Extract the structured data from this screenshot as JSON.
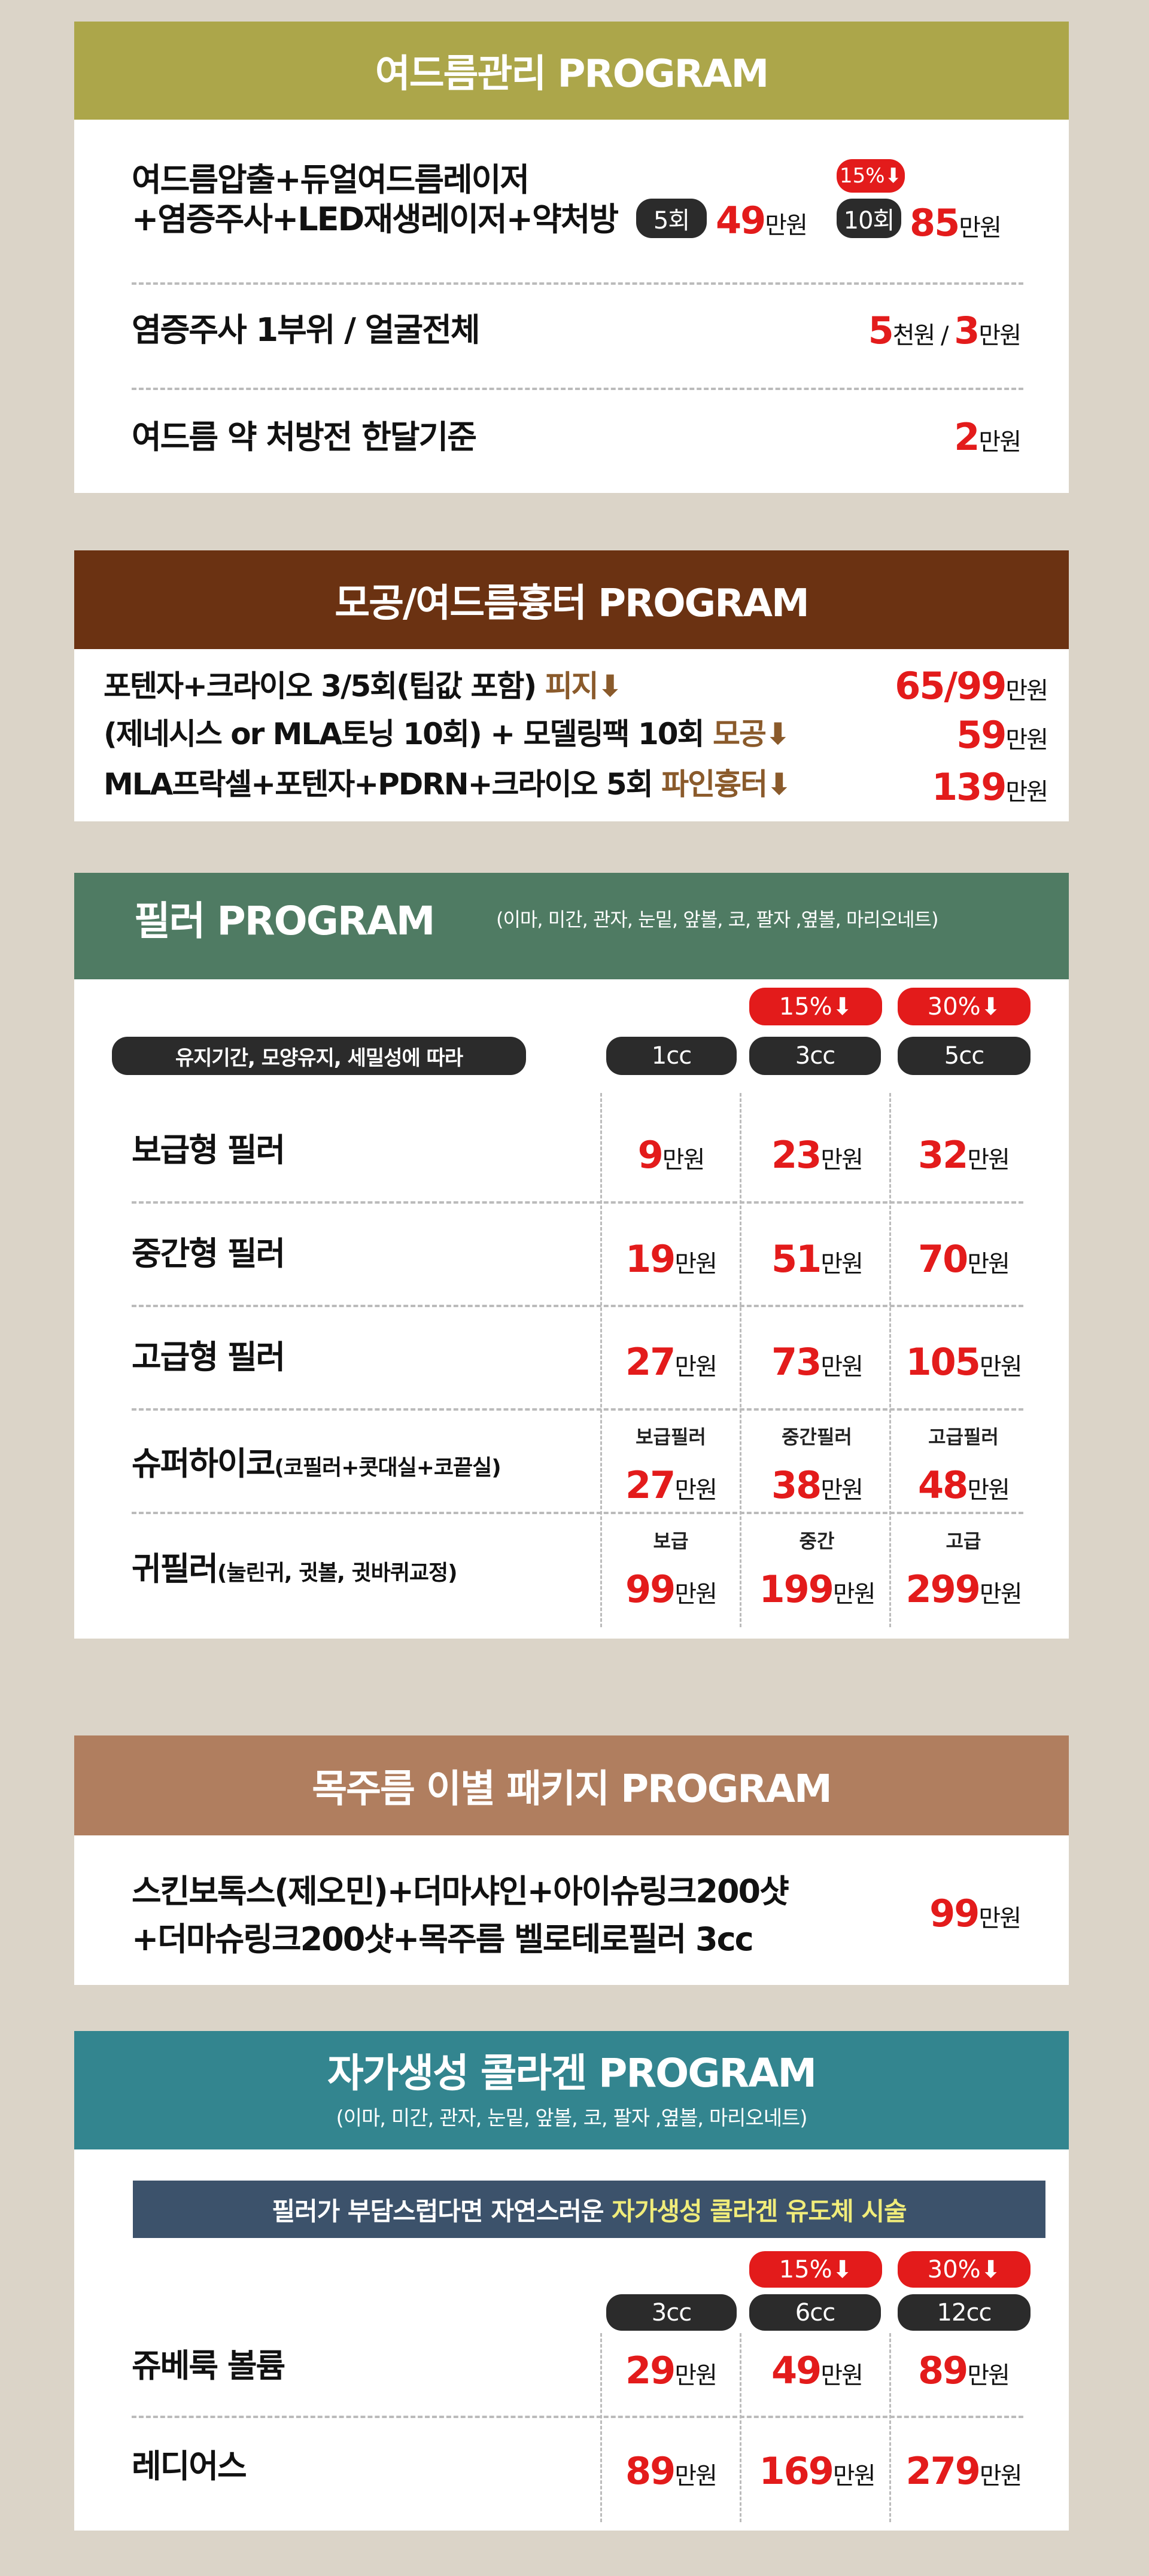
{
  "colors": {
    "acne": "#aca64a",
    "pore": "#6b3212",
    "filler": "#4f7b63",
    "neck": "#b07e5f",
    "collagen": "#33858f",
    "band": "#3c526b",
    "price": "#e31b1b",
    "highlight": "#f0ec7a"
  },
  "unit": "만원",
  "acne": {
    "title": "여드름관리 PROGRAM",
    "row1": {
      "line1": "여드름압출+듀얼여드름레이저",
      "line2": "+염증주사+LED재생레이저+약처방",
      "opt1": {
        "badge": "5회",
        "price": "49"
      },
      "opt2": {
        "discount": "15%⬇",
        "badge": "10회",
        "price": "85"
      }
    },
    "row2": {
      "name": "염증주사 1부위 / 얼굴전체",
      "price1": "5",
      "unit1": "천원",
      "sep": " / ",
      "price2": "3"
    },
    "row3": {
      "name": "여드름 약 처방전 한달기준",
      "price": "2"
    }
  },
  "pore": {
    "title": "모공/여드름흉터 PROGRAM",
    "rows": [
      {
        "name": "포텐자+크라이오 3/5회(팁값 포함)",
        "tag": "피지⬇",
        "price": "65/99"
      },
      {
        "name": "(제네시스 or MLA토닝 10회) + 모델링팩 10회",
        "tag": "모공⬇",
        "price": "59"
      },
      {
        "name": "MLA프락셀+포텐자+PDRN+크라이오 5회",
        "tag": "파인흉터⬇",
        "price": "139"
      }
    ]
  },
  "filler": {
    "title": "필러 PROGRAM",
    "subtitle": "(이마, 미간, 관자, 눈밑, 앞볼, 코, 팔자 ,옆볼, 마리오네트)",
    "criteria": "유지기간, 모양유지, 세밀성에 따라",
    "discounts": [
      "15%⬇",
      "30%⬇"
    ],
    "columns": [
      "1cc",
      "3cc",
      "5cc"
    ],
    "rows": [
      {
        "name": "보급형 필러",
        "sub": "",
        "labels": [
          "",
          "",
          ""
        ],
        "prices": [
          "9",
          "23",
          "32"
        ]
      },
      {
        "name": "중간형 필러",
        "sub": "",
        "labels": [
          "",
          "",
          ""
        ],
        "prices": [
          "19",
          "51",
          "70"
        ]
      },
      {
        "name": "고급형 필러",
        "sub": "",
        "labels": [
          "",
          "",
          ""
        ],
        "prices": [
          "27",
          "73",
          "105"
        ]
      },
      {
        "name": "슈퍼하이코",
        "sub": "(코필러+콧대실+코끝실)",
        "labels": [
          "보급필러",
          "중간필러",
          "고급필러"
        ],
        "prices": [
          "27",
          "38",
          "48"
        ]
      },
      {
        "name": "귀필러",
        "sub": "(눌린귀, 귓볼, 귓바퀴교정)",
        "labels": [
          "보급",
          "중간",
          "고급"
        ],
        "prices": [
          "99",
          "199",
          "299"
        ]
      }
    ]
  },
  "neck": {
    "title": "목주름 이별 패키지 PROGRAM",
    "line1": "스킨보톡스(제오민)+더마샤인+아이슈링크200샷",
    "line2": "+더마슈링크200샷+목주름 벨로테로필러 3cc",
    "price": "99"
  },
  "collagen": {
    "title": "자가생성 콜라겐 PROGRAM",
    "subtitle": "(이마, 미간, 관자, 눈밑, 앞볼, 코, 팔자 ,옆볼, 마리오네트)",
    "band_text": "필러가 부담스럽다면 자연스러운 ",
    "band_highlight": "자가생성 콜라겐 유도체 시술",
    "discounts": [
      "15%⬇",
      "30%⬇"
    ],
    "columns": [
      "3cc",
      "6cc",
      "12cc"
    ],
    "rows": [
      {
        "name": "쥬베룩 볼륨",
        "prices": [
          "29",
          "49",
          "89"
        ]
      },
      {
        "name": "레디어스",
        "prices": [
          "89",
          "169",
          "279"
        ]
      }
    ]
  }
}
